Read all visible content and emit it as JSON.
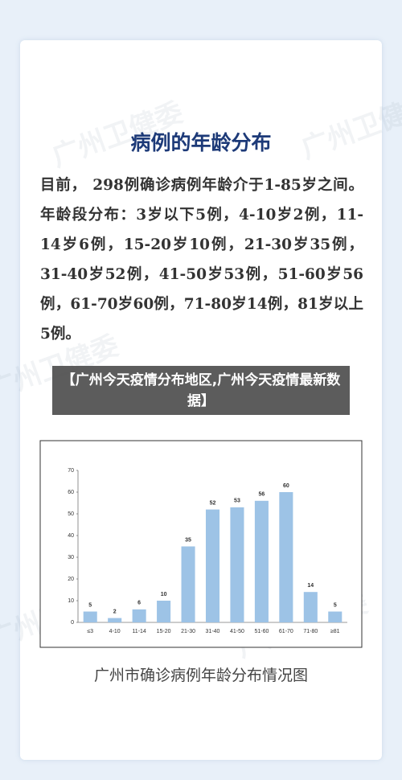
{
  "title": "病例的年龄分布",
  "watermark": "广州卫健委",
  "paragraph": "目前， 298例确诊病例年龄介于1-85岁之间。年龄段分布：3岁以下5例，4-10岁2例，11-14岁6例，15-20岁10例，21-30岁35例，31-40岁52例，41-50岁53例，51-60岁56例，61-70岁60例，71-80岁14例，81岁以上5例。",
  "overlay": "【广州今天疫情分布地区,广州今天疫情最新数据】",
  "caption": "广州市确诊病例年龄分布情况图",
  "chart_data": {
    "type": "bar",
    "categories": [
      "≤3",
      "4-10",
      "11-14",
      "15-20",
      "21-30",
      "31-40",
      "41-50",
      "51-60",
      "61-70",
      "71-80",
      "≥81"
    ],
    "values": [
      5,
      2,
      6,
      10,
      35,
      52,
      53,
      56,
      60,
      14,
      5
    ],
    "color": "#9dc3e6",
    "ylim": [
      0,
      70
    ],
    "yticks": [
      0,
      10,
      20,
      30,
      40,
      50,
      60,
      70
    ]
  }
}
